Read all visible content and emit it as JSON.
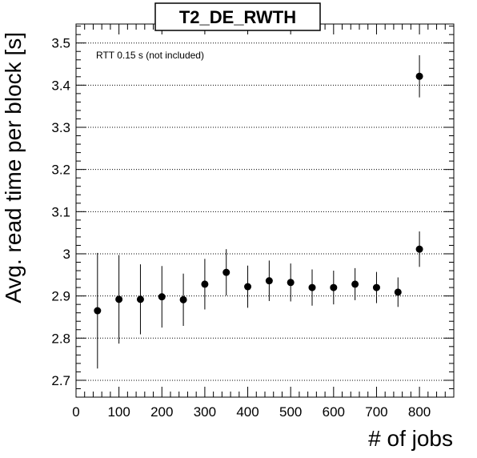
{
  "chart_data": {
    "type": "scatter",
    "title": "T2_DE_RWTH",
    "xlabel": "# of jobs",
    "ylabel": "Avg. read time per block [s]",
    "annotation": "RTT 0.15 s (not included)",
    "xlim": [
      0,
      880
    ],
    "ylim": [
      2.66,
      3.545
    ],
    "x_ticks": [
      0,
      100,
      200,
      300,
      400,
      500,
      600,
      700,
      800
    ],
    "y_ticks": [
      2.7,
      2.8,
      2.9,
      3,
      3.1,
      3.2,
      3.3,
      3.4,
      3.5
    ],
    "grid": "horizontal-dotted",
    "points": [
      {
        "x": 50,
        "y": 2.865,
        "err": 0.137
      },
      {
        "x": 100,
        "y": 2.892,
        "err": 0.105
      },
      {
        "x": 150,
        "y": 2.892,
        "err": 0.083
      },
      {
        "x": 200,
        "y": 2.898,
        "err": 0.073
      },
      {
        "x": 250,
        "y": 2.891,
        "err": 0.062
      },
      {
        "x": 300,
        "y": 2.928,
        "err": 0.06
      },
      {
        "x": 350,
        "y": 2.956,
        "err": 0.055
      },
      {
        "x": 400,
        "y": 2.922,
        "err": 0.05
      },
      {
        "x": 450,
        "y": 2.936,
        "err": 0.048
      },
      {
        "x": 500,
        "y": 2.932,
        "err": 0.045
      },
      {
        "x": 550,
        "y": 2.92,
        "err": 0.043
      },
      {
        "x": 600,
        "y": 2.92,
        "err": 0.04
      },
      {
        "x": 650,
        "y": 2.928,
        "err": 0.038
      },
      {
        "x": 700,
        "y": 2.92,
        "err": 0.037
      },
      {
        "x": 750,
        "y": 2.909,
        "err": 0.035
      },
      {
        "x": 800,
        "y": 3.011,
        "err": 0.042
      },
      {
        "x": 800,
        "y": 3.421,
        "err": 0.05
      }
    ]
  }
}
